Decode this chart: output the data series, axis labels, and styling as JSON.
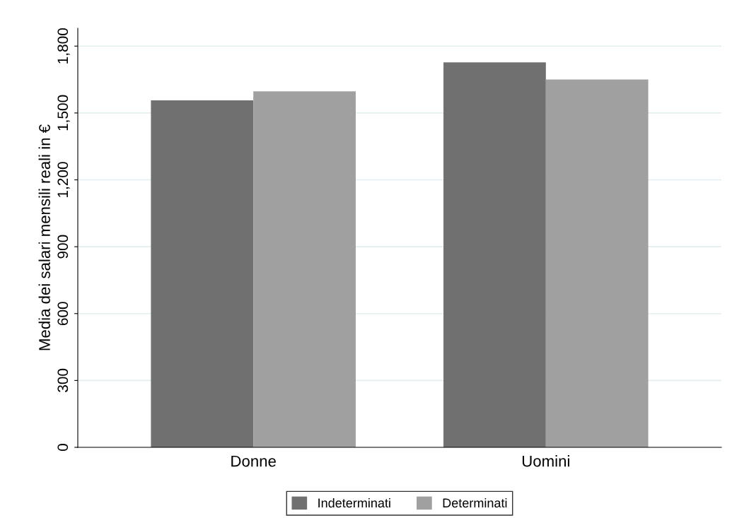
{
  "chart_data": {
    "type": "bar",
    "ylabel": "Media dei salari mensili reali in €",
    "categories": [
      "Donne",
      "Uomini"
    ],
    "series": [
      {
        "name": "Indeterminati",
        "color": "#707070",
        "values": [
          1557,
          1727
        ]
      },
      {
        "name": "Determinati",
        "color": "#a0a0a0",
        "values": [
          1597,
          1650
        ]
      }
    ],
    "ylim": [
      0,
      1880
    ],
    "yticks": [
      0,
      300,
      600,
      900,
      {
        "value": 1200,
        "label": "1,200"
      },
      {
        "value": 1500,
        "label": "1,500"
      },
      {
        "value": 1800,
        "label": "1,800"
      }
    ],
    "grid": "y",
    "legend": "bottom"
  }
}
